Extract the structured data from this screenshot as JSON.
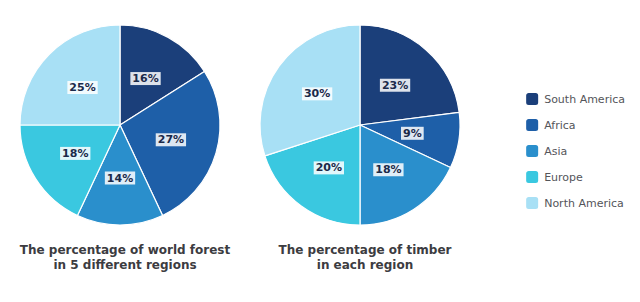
{
  "chart_data": [
    {
      "type": "pie",
      "title": "The percentage of world forest\nin 5 different regions",
      "categories": [
        "South America",
        "Africa",
        "Asia",
        "Europe",
        "North America"
      ],
      "values": [
        16,
        27,
        14,
        18,
        25
      ],
      "value_labels": [
        "16%",
        "27%",
        "14%",
        "18%",
        "25%"
      ],
      "colors": [
        "#1b3f7a",
        "#1e5fa8",
        "#2a8fcc",
        "#3ac8e0",
        "#a8e0f5"
      ],
      "data_labels": true,
      "legend": "right"
    },
    {
      "type": "pie",
      "title": "The percentage of timber\nin each region",
      "categories": [
        "South America",
        "Africa",
        "Asia",
        "Europe",
        "North America"
      ],
      "values": [
        23,
        9,
        18,
        20,
        30
      ],
      "value_labels": [
        "23%",
        "9%",
        "18%",
        "20%",
        "30%"
      ],
      "colors": [
        "#1b3f7a",
        "#1e5fa8",
        "#2a8fcc",
        "#3ac8e0",
        "#a8e0f5"
      ],
      "data_labels": true,
      "legend": "right"
    }
  ]
}
